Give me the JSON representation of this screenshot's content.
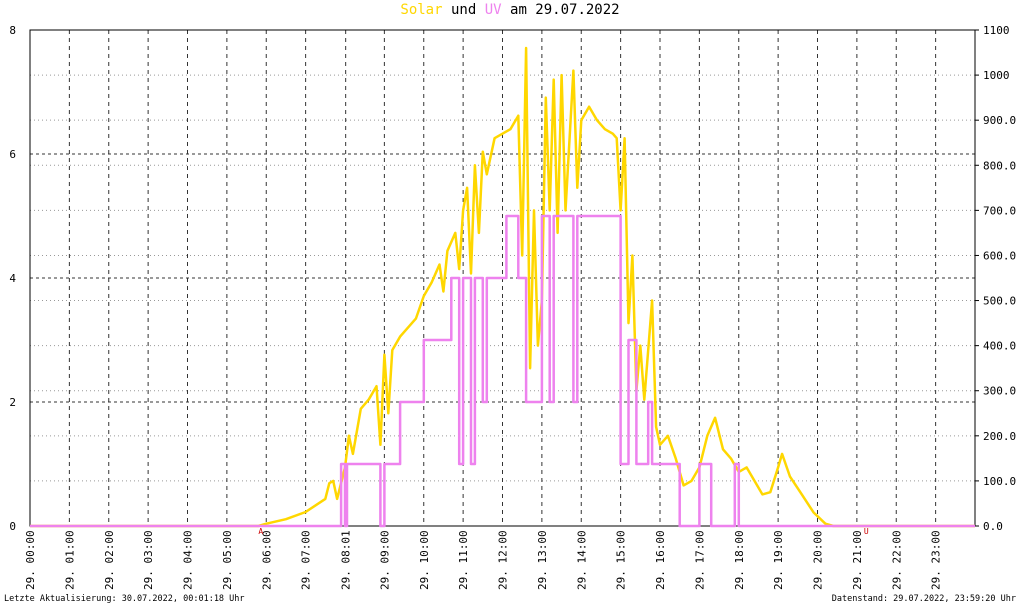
{
  "chart_data": {
    "type": "line",
    "title_connector": "und",
    "title_date": "am 29.07.2022",
    "footer_left": "Letzte Aktualisierung: 30.07.2022, 00:01:18 Uhr",
    "footer_right": "Datenstand: 29.07.2022, 23:59:20 Uhr",
    "annotations": [
      {
        "text": "A",
        "x": 5.86,
        "color": "#cc0000"
      },
      {
        "text": "U",
        "x": 21.24,
        "color": "#cc0000"
      }
    ],
    "xlim": [
      0,
      24
    ],
    "xticks": [
      {
        "value": 0,
        "label": "29. 00:00"
      },
      {
        "value": 1,
        "label": "29. 01:00"
      },
      {
        "value": 2,
        "label": "29. 02:00"
      },
      {
        "value": 3,
        "label": "29. 03:00"
      },
      {
        "value": 4,
        "label": "29. 04:00"
      },
      {
        "value": 5,
        "label": "29. 05:00"
      },
      {
        "value": 6,
        "label": "29. 06:00"
      },
      {
        "value": 7,
        "label": "29. 07:00"
      },
      {
        "value": 8.017,
        "label": "29. 08:01"
      },
      {
        "value": 9,
        "label": "29. 09:00"
      },
      {
        "value": 10,
        "label": "29. 10:00"
      },
      {
        "value": 11,
        "label": "29. 11:00"
      },
      {
        "value": 12,
        "label": "29. 12:00"
      },
      {
        "value": 13,
        "label": "29. 13:00"
      },
      {
        "value": 14,
        "label": "29. 14:00"
      },
      {
        "value": 15,
        "label": "29. 15:00"
      },
      {
        "value": 16,
        "label": "29. 16:00"
      },
      {
        "value": 17,
        "label": "29. 17:00"
      },
      {
        "value": 18,
        "label": "29. 18:00"
      },
      {
        "value": 19,
        "label": "29. 19:00"
      },
      {
        "value": 20,
        "label": "29. 20:00"
      },
      {
        "value": 21,
        "label": "29. 21:00"
      },
      {
        "value": 22,
        "label": "29. 22:00"
      },
      {
        "value": 23,
        "label": "29. 23:00"
      }
    ],
    "ylim": [
      0,
      8
    ],
    "yticks": [
      0,
      2,
      4,
      6,
      8
    ],
    "y2lim": [
      0,
      1100
    ],
    "y2ticks": [
      {
        "value": 0,
        "label": "0.0"
      },
      {
        "value": 100,
        "label": "100.0"
      },
      {
        "value": 200,
        "label": "200.0"
      },
      {
        "value": 300,
        "label": "300.0"
      },
      {
        "value": 400,
        "label": "400.0"
      },
      {
        "value": 500,
        "label": "500.0"
      },
      {
        "value": 600,
        "label": "600.0"
      },
      {
        "value": 700,
        "label": "700.0"
      },
      {
        "value": 800,
        "label": "800.0"
      },
      {
        "value": 900,
        "label": "900.0"
      },
      1000,
      1100
    ],
    "grid": true,
    "series": [
      {
        "name": "Solar",
        "color": "#ffd700",
        "axis": "y2",
        "x": [
          0,
          5.8,
          6.0,
          6.5,
          7.0,
          7.5,
          7.6,
          7.7,
          7.8,
          8.0,
          8.1,
          8.2,
          8.4,
          8.6,
          8.8,
          8.9,
          9.0,
          9.1,
          9.2,
          9.4,
          9.6,
          9.8,
          10.0,
          10.2,
          10.4,
          10.5,
          10.6,
          10.8,
          10.9,
          11.0,
          11.1,
          11.2,
          11.3,
          11.4,
          11.5,
          11.6,
          11.8,
          12.0,
          12.2,
          12.4,
          12.5,
          12.6,
          12.7,
          12.8,
          12.9,
          13.0,
          13.1,
          13.2,
          13.3,
          13.4,
          13.5,
          13.6,
          13.8,
          13.9,
          14.0,
          14.2,
          14.4,
          14.6,
          14.8,
          14.9,
          15.0,
          15.1,
          15.2,
          15.3,
          15.4,
          15.5,
          15.6,
          15.8,
          15.9,
          16.0,
          16.2,
          16.4,
          16.6,
          16.8,
          17.0,
          17.2,
          17.4,
          17.6,
          17.8,
          18.0,
          18.2,
          18.4,
          18.6,
          18.8,
          19.0,
          19.1,
          19.3,
          19.6,
          19.9,
          20.2,
          20.4,
          24
        ],
        "values": [
          0,
          0,
          5,
          15,
          31,
          60,
          95,
          100,
          60,
          130,
          200,
          160,
          260,
          280,
          310,
          180,
          380,
          250,
          390,
          420,
          440,
          460,
          510,
          540,
          580,
          520,
          610,
          650,
          570,
          700,
          750,
          560,
          800,
          650,
          830,
          780,
          860,
          870,
          880,
          910,
          600,
          1060,
          350,
          700,
          400,
          500,
          950,
          700,
          990,
          650,
          1000,
          700,
          1010,
          750,
          900,
          930,
          900,
          880,
          870,
          860,
          700,
          860,
          450,
          600,
          300,
          400,
          280,
          500,
          220,
          180,
          200,
          150,
          90,
          100,
          130,
          200,
          240,
          170,
          150,
          120,
          130,
          100,
          70,
          75,
          130,
          160,
          110,
          70,
          30,
          5,
          0,
          0
        ]
      },
      {
        "name": "UV",
        "color": "#ee82ee",
        "axis": "y",
        "x": [
          0,
          7.9,
          7.9,
          8.0,
          8.0,
          8.05,
          8.05,
          8.9,
          8.9,
          9.0,
          9.0,
          9.4,
          9.4,
          10.0,
          10.0,
          10.7,
          10.7,
          10.9,
          10.9,
          11.0,
          11.0,
          11.2,
          11.2,
          11.3,
          11.3,
          11.5,
          11.5,
          11.6,
          11.6,
          12.1,
          12.1,
          12.4,
          12.4,
          12.6,
          12.6,
          13.0,
          13.0,
          13.2,
          13.2,
          13.3,
          13.3,
          13.8,
          13.8,
          13.9,
          13.9,
          15.0,
          15.0,
          15.2,
          15.2,
          15.4,
          15.4,
          15.7,
          15.7,
          15.8,
          15.8,
          16.5,
          16.5,
          17.0,
          17.0,
          17.3,
          17.3,
          17.9,
          17.9,
          18.0,
          18.0,
          24
        ],
        "values": [
          0,
          0,
          1,
          1,
          0,
          0,
          1,
          1,
          0,
          0,
          1,
          1,
          2,
          2,
          3,
          3,
          4,
          4,
          1,
          1,
          4,
          4,
          1,
          1,
          4,
          4,
          2,
          2,
          4,
          4,
          5,
          5,
          4,
          4,
          2,
          2,
          5,
          5,
          2,
          2,
          5,
          5,
          2,
          2,
          5,
          5,
          1,
          1,
          3,
          3,
          1,
          1,
          2,
          2,
          1,
          1,
          0,
          0,
          1,
          1,
          0,
          0,
          1,
          1,
          0,
          0
        ]
      }
    ]
  }
}
